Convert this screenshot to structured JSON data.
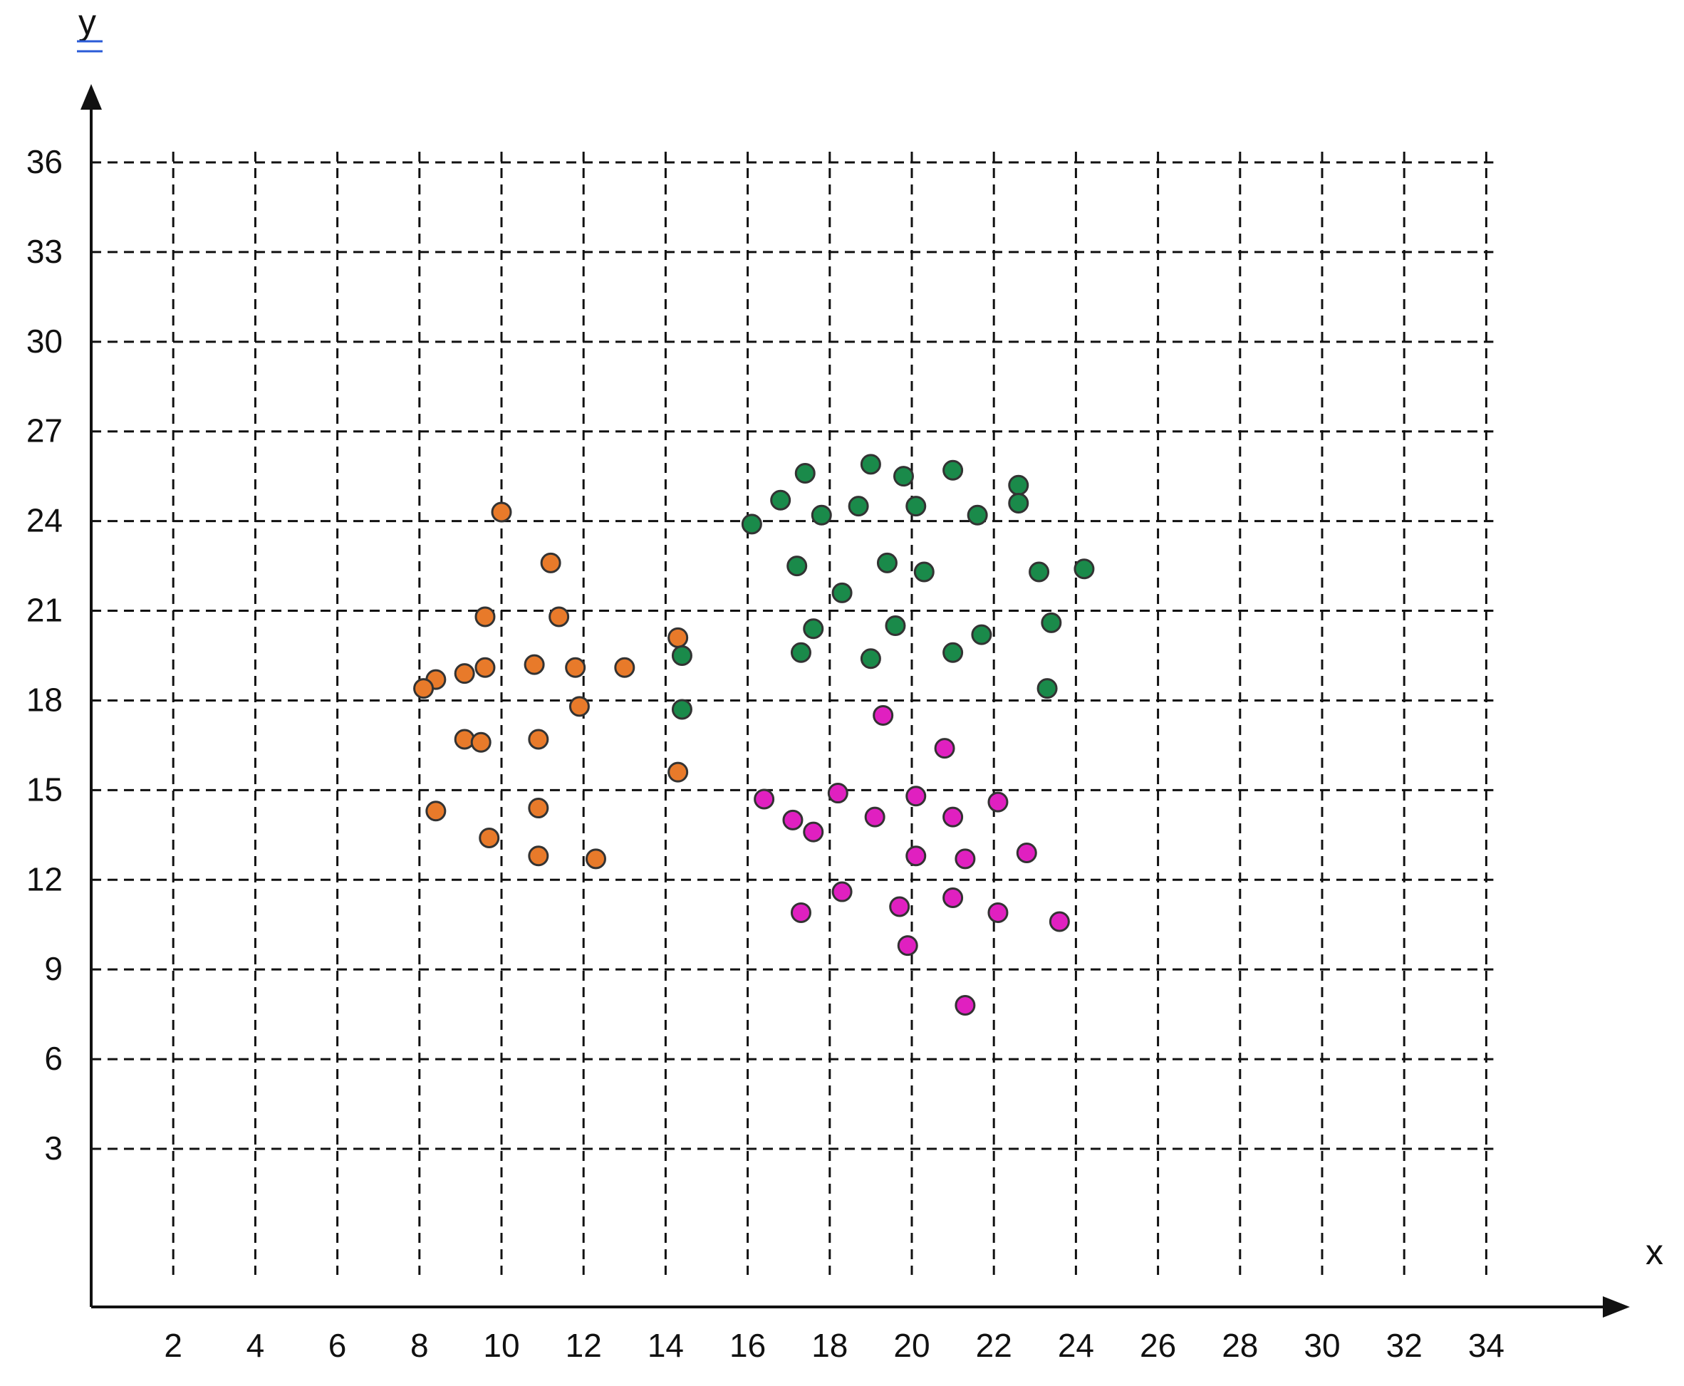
{
  "chart_data": {
    "type": "scatter",
    "xlabel": "x",
    "ylabel": "y",
    "xlim": [
      0,
      34
    ],
    "ylim": [
      0,
      36
    ],
    "x_ticks": [
      "2",
      "4",
      "6",
      "8",
      "10",
      "12",
      "14",
      "16",
      "18",
      "20",
      "22",
      "24",
      "26",
      "28",
      "30",
      "32",
      "34"
    ],
    "y_ticks": [
      "3",
      "6",
      "9",
      "12",
      "15",
      "18",
      "21",
      "24",
      "27",
      "30",
      "33",
      "36"
    ],
    "grid": true,
    "series": [
      {
        "color": "#E87A2A",
        "points": [
          [
            10,
            24.3
          ],
          [
            11.2,
            22.6
          ],
          [
            11.4,
            20.8
          ],
          [
            9.6,
            20.8
          ],
          [
            14.3,
            20.1
          ],
          [
            9.6,
            19.1
          ],
          [
            10.8,
            19.2
          ],
          [
            11.8,
            19.1
          ],
          [
            13,
            19.1
          ],
          [
            9.1,
            18.9
          ],
          [
            8.4,
            18.7
          ],
          [
            8.1,
            18.4
          ],
          [
            11.9,
            17.8
          ],
          [
            10.9,
            16.7
          ],
          [
            9.1,
            16.7
          ],
          [
            9.5,
            16.6
          ],
          [
            14.3,
            15.6
          ],
          [
            10.9,
            14.4
          ],
          [
            8.4,
            14.3
          ],
          [
            9.7,
            13.4
          ],
          [
            10.9,
            12.8
          ],
          [
            12.3,
            12.7
          ]
        ]
      },
      {
        "color": "#1A8A4A",
        "points": [
          [
            17.4,
            25.6
          ],
          [
            19,
            25.9
          ],
          [
            19.8,
            25.5
          ],
          [
            21,
            25.7
          ],
          [
            22.6,
            25.2
          ],
          [
            16.8,
            24.7
          ],
          [
            17.8,
            24.2
          ],
          [
            18.7,
            24.5
          ],
          [
            20.1,
            24.5
          ],
          [
            21.6,
            24.2
          ],
          [
            22.6,
            24.6
          ],
          [
            16.1,
            23.9
          ],
          [
            17.2,
            22.5
          ],
          [
            19.4,
            22.6
          ],
          [
            20.3,
            22.3
          ],
          [
            23.1,
            22.3
          ],
          [
            24.2,
            22.4
          ],
          [
            18.3,
            21.6
          ],
          [
            17.6,
            20.4
          ],
          [
            19.6,
            20.5
          ],
          [
            21.7,
            20.2
          ],
          [
            23.4,
            20.6
          ],
          [
            17.3,
            19.6
          ],
          [
            19,
            19.4
          ],
          [
            21,
            19.6
          ],
          [
            14.4,
            19.5
          ],
          [
            23.3,
            18.4
          ],
          [
            14.4,
            17.7
          ]
        ]
      },
      {
        "color": "#E020C0",
        "points": [
          [
            19.3,
            17.5
          ],
          [
            20.8,
            16.4
          ],
          [
            16.4,
            14.7
          ],
          [
            18.2,
            14.9
          ],
          [
            20.1,
            14.8
          ],
          [
            22.1,
            14.6
          ],
          [
            17.1,
            14
          ],
          [
            17.6,
            13.6
          ],
          [
            19.1,
            14.1
          ],
          [
            21,
            14.1
          ],
          [
            22.8,
            12.9
          ],
          [
            20.1,
            12.8
          ],
          [
            21.3,
            12.7
          ],
          [
            18.3,
            11.6
          ],
          [
            21,
            11.4
          ],
          [
            17.3,
            10.9
          ],
          [
            19.7,
            11.1
          ],
          [
            22.1,
            10.9
          ],
          [
            23.6,
            10.6
          ],
          [
            19.9,
            9.8
          ],
          [
            21.3,
            7.8
          ]
        ]
      }
    ]
  }
}
